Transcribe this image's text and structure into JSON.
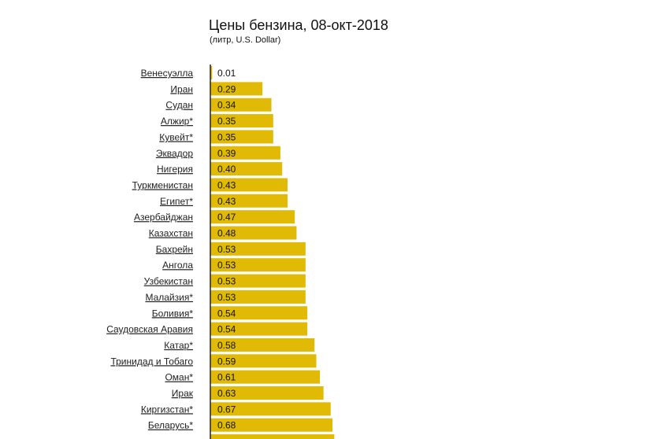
{
  "chart_data": {
    "type": "bar",
    "orientation": "horizontal",
    "title": "Цены бензина, 08-окт-2018",
    "subtitle": "(литр, U.S. Dollar)",
    "xlabel": "",
    "ylabel": "",
    "xlim": [
      0,
      1
    ],
    "grid": false,
    "bar_color": "#e1ba05",
    "categories": [
      "Венесуэлла",
      "Иран",
      "Судан",
      "Алжир*",
      "Кувейт*",
      "Эквадор",
      "Нигерия",
      "Туркменистан",
      "Египет*",
      "Азербайджан",
      "Казахстан",
      "Бахрейн",
      "Ангола",
      "Узбекистан",
      "Малайзия*",
      "Боливия*",
      "Саудовская Аравия",
      "Катар*",
      "Тринидад и Тобаго",
      "Оман*",
      "Ирак",
      "Киргизстан*",
      "Беларусь*"
    ],
    "values": [
      0.01,
      0.29,
      0.34,
      0.35,
      0.35,
      0.39,
      0.4,
      0.43,
      0.43,
      0.47,
      0.48,
      0.53,
      0.53,
      0.53,
      0.53,
      0.54,
      0.54,
      0.58,
      0.59,
      0.61,
      0.63,
      0.67,
      0.68
    ],
    "value_labels": [
      "0.01",
      "0.29",
      "0.34",
      "0.35",
      "0.35",
      "0.39",
      "0.40",
      "0.43",
      "0.43",
      "0.47",
      "0.48",
      "0.53",
      "0.53",
      "0.53",
      "0.53",
      "0.54",
      "0.54",
      "0.58",
      "0.59",
      "0.61",
      "0.63",
      "0.67",
      "0.68"
    ]
  }
}
